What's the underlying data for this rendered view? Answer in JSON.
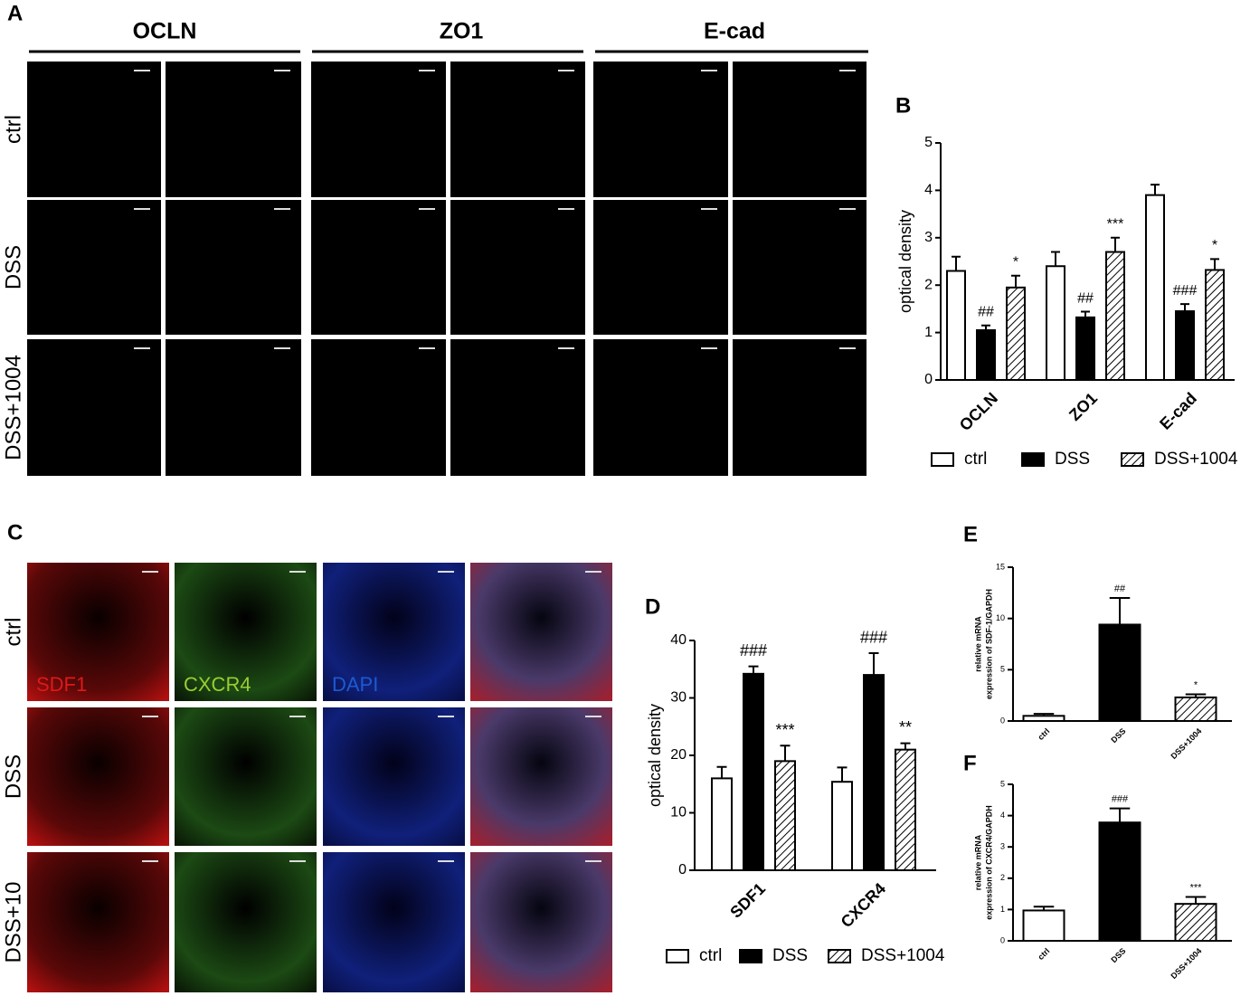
{
  "panel_labels": [
    "A",
    "B",
    "C",
    "D",
    "E",
    "F"
  ],
  "panel_a": {
    "columns": [
      "OCLN",
      "ZO1",
      "E-cad"
    ],
    "rows": [
      "ctrl",
      "DSS",
      "DSS+1004"
    ]
  },
  "panel_c": {
    "rows": [
      "ctrl",
      "DSS",
      "DSS+10"
    ],
    "channels": [
      "SDF1",
      "CXCR4",
      "DAPI"
    ]
  },
  "chart_data": [
    {
      "type": "bar",
      "ylabel": [
        "optical density"
      ],
      "categories": [
        "OCLN",
        "ZO1",
        "E-cad"
      ],
      "ylim": [
        0,
        5
      ],
      "yticks": [
        0,
        1,
        2,
        3,
        4,
        5
      ],
      "legend": "bottom",
      "series": [
        {
          "name": "ctrl",
          "style": "open",
          "values": [
            2.3,
            2.4,
            3.9
          ],
          "errors": [
            0.3,
            0.3,
            0.22
          ],
          "annotations": [
            null,
            null,
            null
          ]
        },
        {
          "name": "DSS",
          "style": "solid",
          "values": [
            1.05,
            1.32,
            1.45
          ],
          "errors": [
            0.1,
            0.12,
            0.15
          ],
          "annotations": [
            "##",
            "##",
            "###"
          ]
        },
        {
          "name": "DSS+1004",
          "style": "hatched",
          "values": [
            1.95,
            2.7,
            2.32
          ],
          "errors": [
            0.25,
            0.3,
            0.23
          ],
          "annotations": [
            "*",
            "***",
            "*"
          ]
        }
      ]
    },
    {
      "type": "bar",
      "ylabel": [
        "optical density"
      ],
      "categories": [
        "SDF1",
        "CXCR4"
      ],
      "ylim": [
        0,
        40
      ],
      "yticks": [
        0,
        10,
        20,
        30,
        40
      ],
      "legend": "bottom",
      "series": [
        {
          "name": "ctrl",
          "style": "open",
          "values": [
            16,
            15.4
          ],
          "errors": [
            2,
            2.5
          ],
          "annotations": [
            null,
            null
          ]
        },
        {
          "name": "DSS",
          "style": "solid",
          "values": [
            34.2,
            34
          ],
          "errors": [
            1.3,
            3.8
          ],
          "annotations": [
            "###",
            "###"
          ]
        },
        {
          "name": "DSS+1004",
          "style": "hatched",
          "values": [
            19,
            21
          ],
          "errors": [
            2.7,
            1.1
          ],
          "annotations": [
            "***",
            "**"
          ]
        }
      ]
    },
    {
      "type": "bar",
      "ylabel": [
        "relative mRNA",
        "expression of SDF-1/GAPDH"
      ],
      "categories": [
        "ctrl",
        "DSS",
        "DSS+1004"
      ],
      "ylim": [
        0,
        15
      ],
      "yticks": [
        0,
        5,
        10,
        15
      ],
      "bar_styles": [
        "open",
        "solid",
        "hatched"
      ],
      "values": [
        0.5,
        9.4,
        2.3
      ],
      "errors": [
        0.2,
        2.6,
        0.3
      ],
      "annotations": [
        null,
        "##",
        "*"
      ]
    },
    {
      "type": "bar",
      "ylabel": [
        "relative mRNA",
        "expression of CXCR4/GAPDH"
      ],
      "categories": [
        "ctrl",
        "DSS",
        "DSS+1004"
      ],
      "ylim": [
        0,
        5
      ],
      "yticks": [
        0,
        1,
        2,
        3,
        4,
        5
      ],
      "bar_styles": [
        "open",
        "solid",
        "hatched"
      ],
      "values": [
        0.97,
        3.78,
        1.18
      ],
      "errors": [
        0.12,
        0.45,
        0.22
      ],
      "annotations": [
        null,
        "###",
        "***"
      ]
    }
  ]
}
